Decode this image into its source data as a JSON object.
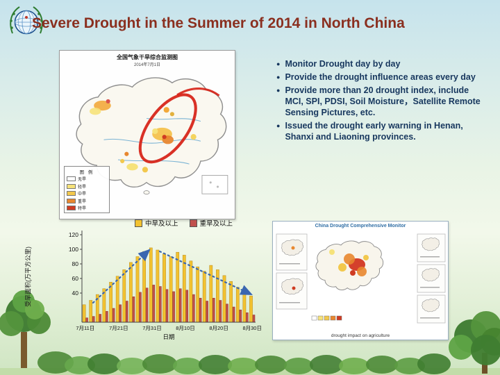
{
  "slide": {
    "title": "Severe Drought in the Summer of 2014 in North China",
    "title_color": "#8a2f1f"
  },
  "bullets": {
    "glyph": "●",
    "items": [
      "Monitor Drought day by day",
      "Provide the drought influence areas every day",
      "Provide more than 20 drought index, include MCI, SPI, PDSI, Soil Moisture，Satellite Remote Sensing Pictures, etc.",
      "Issued the drought early warning in Henan, Shanxi and Liaoning provinces."
    ]
  },
  "left_map": {
    "title": "全国气象干旱综合监测图",
    "date": "2014年7月1日",
    "legend_title": "图 例",
    "legend_items": [
      {
        "label": "无旱",
        "color": "#ffffff"
      },
      {
        "label": "轻旱",
        "color": "#f6e27a"
      },
      {
        "label": "中旱",
        "color": "#f2c84d"
      },
      {
        "label": "重旱",
        "color": "#e8872f"
      },
      {
        "label": "特旱",
        "color": "#cf3b22"
      }
    ],
    "annotation": "red-ellipse-over-north-china"
  },
  "chart_data": {
    "type": "bar",
    "title": "",
    "xlabel": "日期",
    "ylabel": "受旱面积(万平方公里)",
    "ylim": [
      0,
      120
    ],
    "yticks": [
      40,
      60,
      80,
      100,
      120
    ],
    "grid": false,
    "legend_position": "top",
    "categories": [
      "7月11日",
      "7月21日",
      "7月31日",
      "8月10日",
      "8月20日",
      "8月30日"
    ],
    "series": [
      {
        "name": "中旱及以上",
        "color": "#F2C230",
        "values": [
          24,
          30,
          38,
          46,
          55,
          63,
          72,
          82,
          90,
          97,
          102,
          99,
          94,
          90,
          96,
          92,
          84,
          76,
          70,
          78,
          72,
          64,
          56,
          48,
          42,
          36
        ]
      },
      {
        "name": "重旱及以上",
        "color": "#C0504D",
        "values": [
          6,
          8,
          11,
          15,
          19,
          24,
          29,
          35,
          41,
          47,
          51,
          49,
          45,
          42,
          46,
          44,
          38,
          33,
          29,
          33,
          30,
          25,
          21,
          17,
          13,
          10
        ]
      }
    ],
    "annotations": [
      "rising-trend-dashed-arrow",
      "falling-trend-dashed-arrow"
    ],
    "annotation_color": "#3a66b0"
  },
  "right_panel": {
    "title": "China Drought Comprehensive Monitor",
    "caption": "drought impact on agriculture"
  }
}
